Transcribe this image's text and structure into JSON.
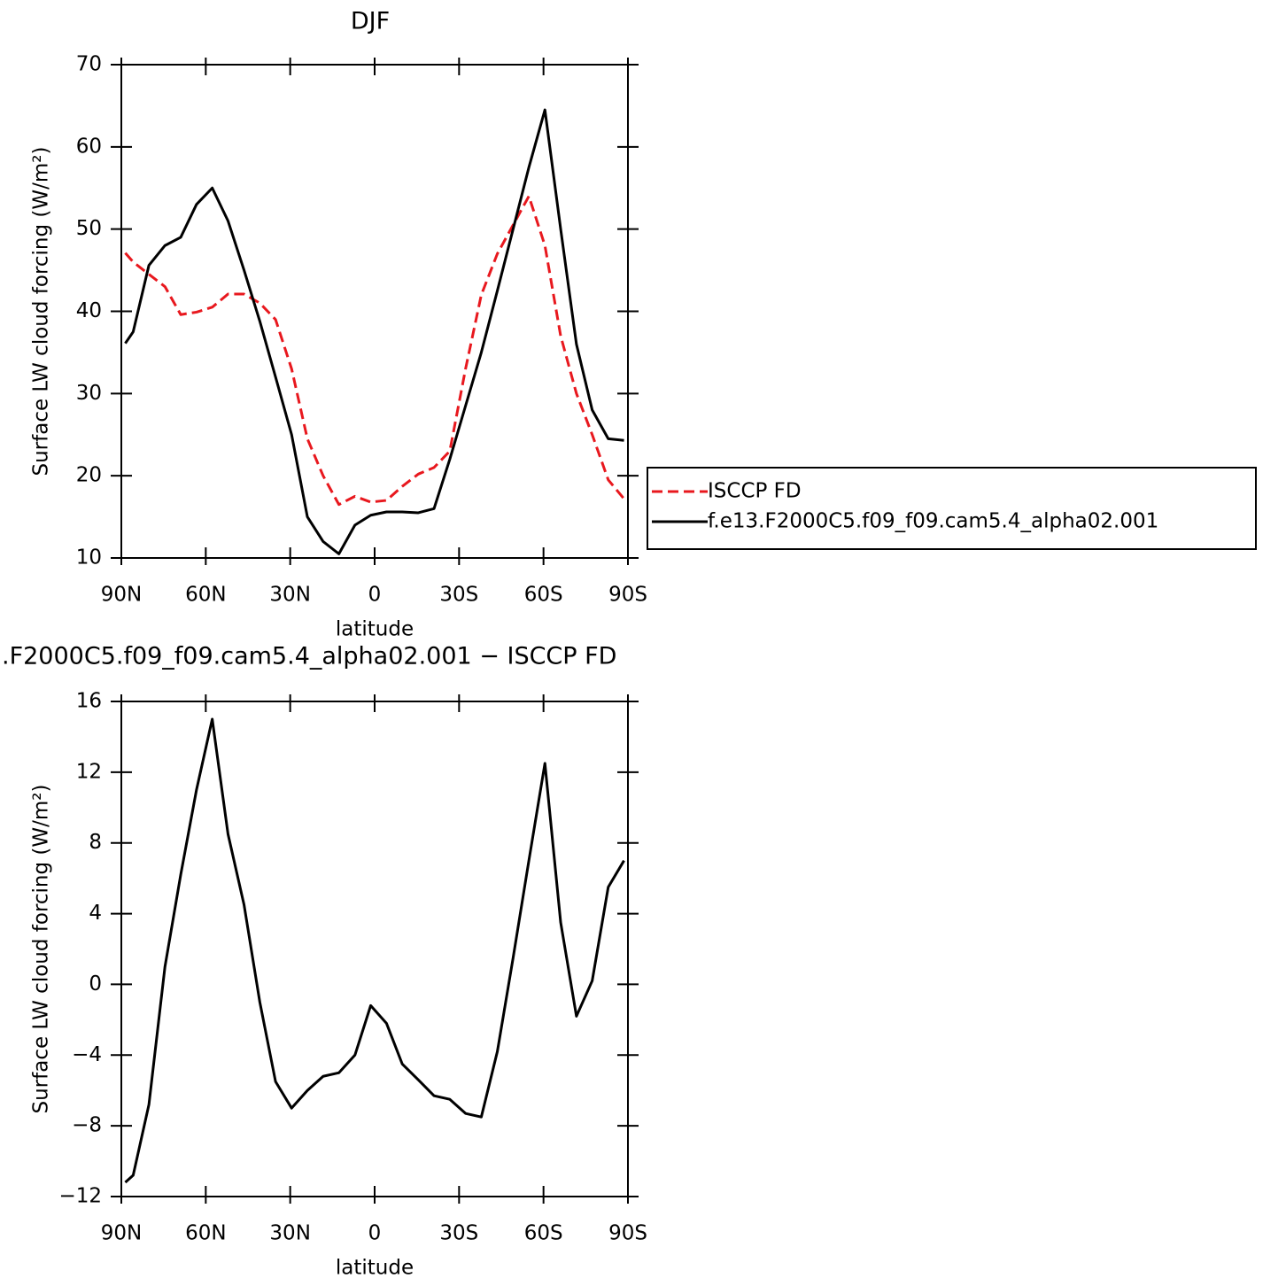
{
  "chart_data": [
    {
      "type": "line",
      "title": "DJF",
      "xlabel": "latitude",
      "ylabel": "Surface LW cloud forcing (W/m²)",
      "x": [
        88.6,
        85.8,
        80.2,
        74.5,
        68.9,
        63.3,
        57.7,
        52.1,
        46.4,
        40.8,
        35.2,
        29.5,
        23.9,
        18.3,
        12.7,
        7.0,
        1.4,
        -4.2,
        -9.8,
        -15.5,
        -21.1,
        -26.7,
        -32.3,
        -37.9,
        -43.6,
        -49.2,
        -54.8,
        -60.5,
        -66.1,
        -71.7,
        -77.3,
        -83.0,
        -88.6
      ],
      "series": [
        {
          "name": "ISCCP FD",
          "color": "#e8181e",
          "line_style": "dashed",
          "values": [
            47.1,
            46,
            44.5,
            43,
            39.6,
            39.9,
            40.5,
            42.1,
            42.1,
            41,
            39,
            33,
            24.5,
            20,
            16.5,
            17.5,
            16.8,
            17,
            18.7,
            20.2,
            21,
            23,
            33,
            42,
            47,
            50.5,
            54,
            48,
            37,
            30,
            25,
            19.5,
            17.2
          ]
        },
        {
          "name": "f.e13.F2000C5.f09_f09.cam5.4_alpha02.001",
          "color": "#000000",
          "line_style": "solid",
          "values": [
            36.1,
            37.5,
            45.6,
            48,
            49,
            53,
            55,
            51,
            45,
            38.8,
            32,
            25,
            15,
            12,
            10.5,
            14,
            15.2,
            15.6,
            15.6,
            15.5,
            16,
            22,
            28.5,
            35,
            42.5,
            50,
            57.5,
            64.5,
            50,
            36,
            28,
            24.5,
            24.3
          ]
        }
      ],
      "xlim": [
        90,
        -90
      ],
      "xticks": [
        {
          "value": 90,
          "label": "90N"
        },
        {
          "value": 60,
          "label": "60N"
        },
        {
          "value": 30,
          "label": "30N"
        },
        0,
        {
          "value": -30,
          "label": "30S"
        },
        {
          "value": -60,
          "label": "60S"
        },
        {
          "value": -90,
          "label": "90S"
        }
      ],
      "ylim": [
        10,
        70
      ],
      "yticks": [
        10,
        20,
        30,
        40,
        50,
        60,
        70
      ],
      "legend": "right"
    },
    {
      "type": "line",
      "title": ".F2000C5.f09_f09.cam5.4_alpha02.001 − ISCCP FD",
      "xlabel": "latitude",
      "ylabel": "Surface LW cloud forcing (W/m²)",
      "x": [
        88.6,
        85.8,
        80.2,
        74.5,
        68.9,
        63.3,
        57.7,
        52.1,
        46.4,
        40.8,
        35.2,
        29.5,
        23.9,
        18.3,
        12.7,
        7.0,
        1.4,
        -4.2,
        -9.8,
        -15.5,
        -21.1,
        -26.7,
        -32.3,
        -37.9,
        -43.6,
        -49.2,
        -54.8,
        -60.5,
        -66.1,
        -71.7,
        -77.3,
        -83.0,
        -88.6
      ],
      "series": [
        {
          "color": "#000000",
          "line_style": "solid",
          "values": [
            -11.2,
            -10.8,
            -6.8,
            1,
            6.2,
            11,
            15,
            8.5,
            4.5,
            -1,
            -5.5,
            -7,
            -6,
            -5.2,
            -5,
            -4,
            -1.2,
            -2.2,
            -4.5,
            -5.4,
            -6.3,
            -6.5,
            -7.3,
            -7.5,
            -3.8,
            1.5,
            7,
            12.5,
            3.5,
            -1.8,
            0.2,
            5.5,
            7
          ]
        }
      ],
      "xlim": [
        90,
        -90
      ],
      "xticks": [
        {
          "value": 90,
          "label": "90N"
        },
        {
          "value": 60,
          "label": "60N"
        },
        {
          "value": 30,
          "label": "30N"
        },
        0,
        {
          "value": -30,
          "label": "30S"
        },
        {
          "value": -60,
          "label": "60S"
        },
        {
          "value": -90,
          "label": "90S"
        }
      ],
      "ylim": [
        -12,
        16
      ],
      "yticks": [
        {
          "value": -12,
          "label": "−12"
        },
        {
          "value": -8,
          "label": "−8"
        },
        {
          "value": -4,
          "label": "−4"
        },
        0,
        4,
        8,
        12,
        16
      ]
    }
  ]
}
